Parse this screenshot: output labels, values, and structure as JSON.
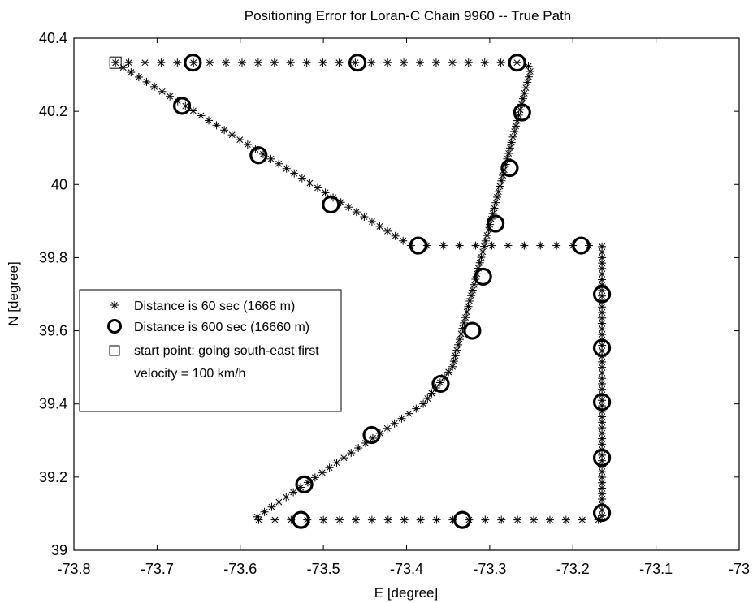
{
  "chart_data": {
    "type": "scatter",
    "title": "Positioning Error for Loran-C Chain 9960 -- True Path",
    "xlabel": "E [degree]",
    "ylabel": "N [degree]",
    "xlim": [
      -73.8,
      -73.0
    ],
    "ylim": [
      39.0,
      40.4
    ],
    "xticks": [
      -73.8,
      -73.7,
      -73.6,
      -73.5,
      -73.4,
      -73.3,
      -73.2,
      -73.1,
      -73.0
    ],
    "yticks": [
      39.0,
      39.2,
      39.4,
      39.6,
      39.8,
      40.0,
      40.2,
      40.4
    ],
    "xtick_labels": [
      "-73.8",
      "-73.7",
      "-73.6",
      "-73.5",
      "-73.4",
      "-73.3",
      "-73.2",
      "-73.1",
      "-73"
    ],
    "ytick_labels": [
      "39",
      "39.2",
      "39.4",
      "39.6",
      "39.8",
      "40",
      "40.2",
      "40.4"
    ],
    "grid": false,
    "legend_position": "left",
    "path_vertices": [
      {
        "x": -73.75,
        "y": 40.333
      },
      {
        "x": -73.395,
        "y": 39.833
      },
      {
        "x": -73.165,
        "y": 39.833
      },
      {
        "x": -73.165,
        "y": 39.083
      },
      {
        "x": -73.585,
        "y": 39.083
      },
      {
        "x": -73.38,
        "y": 39.4
      },
      {
        "x": -73.345,
        "y": 39.5
      },
      {
        "x": -73.25,
        "y": 40.32
      },
      {
        "x": -73.265,
        "y": 40.333
      },
      {
        "x": -73.75,
        "y": 40.333
      }
    ],
    "series": [
      {
        "name": "Distance is 60 sec (1666 m)",
        "marker": "asterisk",
        "spacing_km": 1.666
      },
      {
        "name": "Distance is 600 sec (16660 m)",
        "marker": "circle",
        "points": [
          {
            "x": -73.67,
            "y": 40.215
          },
          {
            "x": -73.578,
            "y": 40.08
          },
          {
            "x": -73.491,
            "y": 39.945
          },
          {
            "x": -73.386,
            "y": 39.833
          },
          {
            "x": -73.19,
            "y": 39.833
          },
          {
            "x": -73.165,
            "y": 39.7
          },
          {
            "x": -73.165,
            "y": 39.553
          },
          {
            "x": -73.165,
            "y": 39.405
          },
          {
            "x": -73.165,
            "y": 39.253
          },
          {
            "x": -73.165,
            "y": 39.102
          },
          {
            "x": -73.333,
            "y": 39.083
          },
          {
            "x": -73.527,
            "y": 39.083
          },
          {
            "x": -73.523,
            "y": 39.18
          },
          {
            "x": -73.442,
            "y": 39.315
          },
          {
            "x": -73.359,
            "y": 39.455
          },
          {
            "x": -73.321,
            "y": 39.6
          },
          {
            "x": -73.308,
            "y": 39.748
          },
          {
            "x": -73.293,
            "y": 39.893
          },
          {
            "x": -73.276,
            "y": 40.045
          },
          {
            "x": -73.261,
            "y": 40.197
          },
          {
            "x": -73.267,
            "y": 40.333
          },
          {
            "x": -73.459,
            "y": 40.333
          },
          {
            "x": -73.657,
            "y": 40.333
          }
        ]
      },
      {
        "name": "start point; going south-east first",
        "marker": "square",
        "points": [
          {
            "x": -73.75,
            "y": 40.333
          }
        ]
      }
    ],
    "legend": [
      {
        "label": "Distance is 60 sec (1666 m)",
        "marker": "asterisk"
      },
      {
        "label": "Distance is 600 sec (16660 m)",
        "marker": "circle"
      },
      {
        "label": "start point; going south-east first",
        "marker": "square"
      },
      {
        "label": "velocity = 100 km/h",
        "marker": "none"
      }
    ]
  }
}
